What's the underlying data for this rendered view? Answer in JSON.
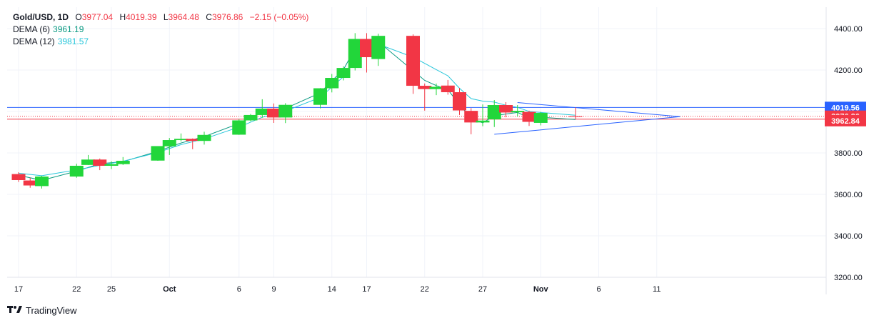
{
  "header": {
    "symbol": "Gold/USD, 1D",
    "open_label": "O",
    "open": "3977.04",
    "high_label": "H",
    "high": "4019.39",
    "low_label": "L",
    "low": "3964.48",
    "close_label": "C",
    "close": "3976.86",
    "change": "−2.15 (−0.05%)"
  },
  "indicators": [
    {
      "name": "DEMA (6)",
      "value": "3961.19",
      "color": "#089981"
    },
    {
      "name": "DEMA (12)",
      "value": "3981.57",
      "color": "#26c6da"
    }
  ],
  "branding": {
    "name": "TradingView",
    "icon": "tradingview-logo"
  },
  "colors": {
    "up": "#22d63a",
    "down": "#f23645",
    "triangle": "#2962ff",
    "blue_line": "#2962ff",
    "red_line": "#f23645"
  },
  "chart_data": {
    "type": "candlestick",
    "y_ticks": [
      "4400.00",
      "4200.00",
      "4000.00",
      "3800.00",
      "3600.00",
      "3400.00",
      "3200.00"
    ],
    "ylim": [
      3200,
      4400
    ],
    "x_ticks": [
      {
        "label": "17",
        "day": 17
      },
      {
        "label": "22",
        "day": 22
      },
      {
        "label": "25",
        "day": 25
      },
      {
        "label": "Oct",
        "day": 30
      },
      {
        "label": "6",
        "day": 36
      },
      {
        "label": "9",
        "day": 39
      },
      {
        "label": "14",
        "day": 44
      },
      {
        "label": "17",
        "day": 47
      },
      {
        "label": "22",
        "day": 52
      },
      {
        "label": "27",
        "day": 57
      },
      {
        "label": "Nov",
        "day": 62
      },
      {
        "label": "6",
        "day": 67
      },
      {
        "label": "11",
        "day": 72
      }
    ],
    "candles": [
      {
        "day": 17,
        "o": 3698,
        "h": 3707,
        "l": 3660,
        "c": 3669
      },
      {
        "day": 18,
        "o": 3667,
        "h": 3680,
        "l": 3632,
        "c": 3643
      },
      {
        "day": 19,
        "o": 3640,
        "h": 3690,
        "l": 3628,
        "c": 3686
      },
      {
        "day": 22,
        "o": 3686,
        "h": 3748,
        "l": 3680,
        "c": 3738
      },
      {
        "day": 23,
        "o": 3742,
        "h": 3790,
        "l": 3742,
        "c": 3768
      },
      {
        "day": 24,
        "o": 3768,
        "h": 3773,
        "l": 3717,
        "c": 3738
      },
      {
        "day": 25,
        "o": 3738,
        "h": 3760,
        "l": 3722,
        "c": 3746
      },
      {
        "day": 26,
        "o": 3746,
        "h": 3780,
        "l": 3742,
        "c": 3762
      },
      {
        "day": 29,
        "o": 3763,
        "h": 3824,
        "l": 3762,
        "c": 3833
      },
      {
        "day": 30,
        "o": 3832,
        "h": 3872,
        "l": 3790,
        "c": 3862
      },
      {
        "day": 31,
        "o": 3862,
        "h": 3894,
        "l": 3855,
        "c": 3868
      },
      {
        "day": 32,
        "o": 3868,
        "h": 3870,
        "l": 3818,
        "c": 3858
      },
      {
        "day": 33,
        "o": 3858,
        "h": 3902,
        "l": 3840,
        "c": 3887
      },
      {
        "day": 36,
        "o": 3888,
        "h": 3962,
        "l": 3887,
        "c": 3957
      },
      {
        "day": 37,
        "o": 3957,
        "h": 3988,
        "l": 3953,
        "c": 3983
      },
      {
        "day": 38,
        "o": 3983,
        "h": 4059,
        "l": 3970,
        "c": 4014
      },
      {
        "day": 39,
        "o": 4014,
        "h": 4039,
        "l": 3945,
        "c": 3971
      },
      {
        "day": 40,
        "o": 3971,
        "h": 4040,
        "l": 3944,
        "c": 4032
      },
      {
        "day": 43,
        "o": 4032,
        "h": 4113,
        "l": 4015,
        "c": 4112
      },
      {
        "day": 44,
        "o": 4112,
        "h": 4181,
        "l": 4092,
        "c": 4162
      },
      {
        "day": 45,
        "o": 4162,
        "h": 4218,
        "l": 4150,
        "c": 4210
      },
      {
        "day": 46,
        "o": 4210,
        "h": 4378,
        "l": 4198,
        "c": 4350
      },
      {
        "day": 47,
        "o": 4350,
        "h": 4378,
        "l": 4188,
        "c": 4262
      },
      {
        "day": 48,
        "o": 4253,
        "h": 4375,
        "l": 4220,
        "c": 4365
      },
      {
        "day": 51,
        "o": 4365,
        "h": 4372,
        "l": 4085,
        "c": 4124
      },
      {
        "day": 52,
        "o": 4124,
        "h": 4135,
        "l": 4004,
        "c": 4108
      },
      {
        "day": 53,
        "o": 4108,
        "h": 4135,
        "l": 4079,
        "c": 4119
      },
      {
        "day": 54,
        "o": 4125,
        "h": 4152,
        "l": 4081,
        "c": 4093
      },
      {
        "day": 55,
        "o": 4093,
        "h": 4113,
        "l": 3983,
        "c": 4005
      },
      {
        "day": 56,
        "o": 4003,
        "h": 4016,
        "l": 3890,
        "c": 3947
      },
      {
        "day": 57,
        "o": 3947,
        "h": 4034,
        "l": 3929,
        "c": 3956
      },
      {
        "day": 58,
        "o": 3962,
        "h": 4055,
        "l": 3925,
        "c": 4031
      },
      {
        "day": 59,
        "o": 4031,
        "h": 4045,
        "l": 3972,
        "c": 3995
      },
      {
        "day": 60,
        "o": 3996,
        "h": 4031,
        "l": 3976,
        "c": 4003
      },
      {
        "day": 61,
        "o": 3998,
        "h": 4004,
        "l": 3930,
        "c": 3950
      },
      {
        "day": 62,
        "o": 3945,
        "h": 3998,
        "l": 3933,
        "c": 3993
      },
      {
        "day": 65,
        "o": 3977.04,
        "h": 4019.39,
        "l": 3964.48,
        "c": 3976.86
      }
    ],
    "series": [
      {
        "name": "DEMA (6)",
        "color": "#089981",
        "points": [
          [
            17,
            3692
          ],
          [
            19,
            3668
          ],
          [
            22,
            3712
          ],
          [
            24,
            3748
          ],
          [
            26,
            3758
          ],
          [
            29,
            3808
          ],
          [
            31,
            3848
          ],
          [
            33,
            3879
          ],
          [
            36,
            3942
          ],
          [
            38,
            3997
          ],
          [
            40,
            4015
          ],
          [
            43,
            4090
          ],
          [
            44,
            4148
          ],
          [
            45,
            4202
          ],
          [
            46,
            4305
          ],
          [
            47,
            4308
          ],
          [
            48,
            4337
          ],
          [
            51,
            4197
          ],
          [
            52,
            4150
          ],
          [
            53,
            4125
          ],
          [
            54,
            4105
          ],
          [
            55,
            4032
          ],
          [
            56,
            3968
          ],
          [
            57,
            3945
          ],
          [
            58,
            3979
          ],
          [
            59,
            3988
          ],
          [
            60,
            3995
          ],
          [
            61,
            3970
          ],
          [
            62,
            3972
          ],
          [
            65,
            3961.19
          ]
        ]
      },
      {
        "name": "DEMA (12)",
        "color": "#26c6da",
        "points": [
          [
            17,
            3702
          ],
          [
            19,
            3690
          ],
          [
            22,
            3718
          ],
          [
            24,
            3740
          ],
          [
            26,
            3760
          ],
          [
            29,
            3802
          ],
          [
            31,
            3840
          ],
          [
            33,
            3868
          ],
          [
            36,
            3925
          ],
          [
            38,
            3972
          ],
          [
            40,
            4002
          ],
          [
            43,
            4068
          ],
          [
            44,
            4118
          ],
          [
            45,
            4168
          ],
          [
            46,
            4260
          ],
          [
            47,
            4290
          ],
          [
            48,
            4325
          ],
          [
            51,
            4262
          ],
          [
            52,
            4232
          ],
          [
            53,
            4202
          ],
          [
            54,
            4172
          ],
          [
            55,
            4112
          ],
          [
            56,
            4062
          ],
          [
            57,
            4050
          ],
          [
            58,
            4045
          ],
          [
            59,
            4030
          ],
          [
            60,
            4020
          ],
          [
            61,
            4000
          ],
          [
            62,
            3995
          ],
          [
            65,
            3981.57
          ]
        ]
      }
    ],
    "price_labels": [
      {
        "value": 4019.56,
        "text": "4019.56",
        "color": "#2962ff"
      },
      {
        "value": 3976.86,
        "text": "3976.86",
        "color": "#f23645"
      },
      {
        "value": 3962.84,
        "text": "3962.84",
        "color": "#f23645"
      }
    ],
    "hlines": [
      {
        "value": 4019.56,
        "color": "#2962ff",
        "style": "solid"
      },
      {
        "value": 3976.86,
        "color": "#f23645",
        "style": "dotted"
      },
      {
        "value": 3962.84,
        "color": "#f23645",
        "style": "solid"
      }
    ],
    "triangle": {
      "upper": [
        [
          60,
          4043
        ],
        [
          74,
          3975
        ]
      ],
      "lower": [
        [
          58,
          3890
        ],
        [
          74,
          3975
        ]
      ]
    },
    "grid": true
  }
}
